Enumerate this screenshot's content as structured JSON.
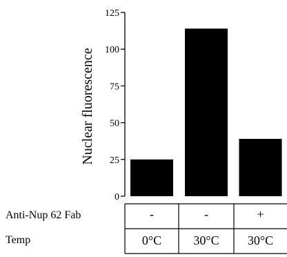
{
  "chart_data": {
    "type": "bar",
    "title": "",
    "xlabel": "",
    "ylabel": "Nuclear fluorescence",
    "ylim": [
      0,
      125
    ],
    "yticks": [
      "0",
      "25",
      "50",
      "75",
      "100",
      "125"
    ],
    "bar_color": "#000000",
    "categories": [
      "0°C -",
      "30°C -",
      "30°C +"
    ],
    "values": [
      25,
      114,
      39
    ]
  },
  "table": {
    "rows": [
      {
        "label": "Anti-Nup 62 Fab",
        "cells": [
          "-",
          "-",
          "+"
        ]
      },
      {
        "label": "Temp",
        "cells": [
          "0°C",
          "30°C",
          "30°C"
        ]
      }
    ]
  }
}
